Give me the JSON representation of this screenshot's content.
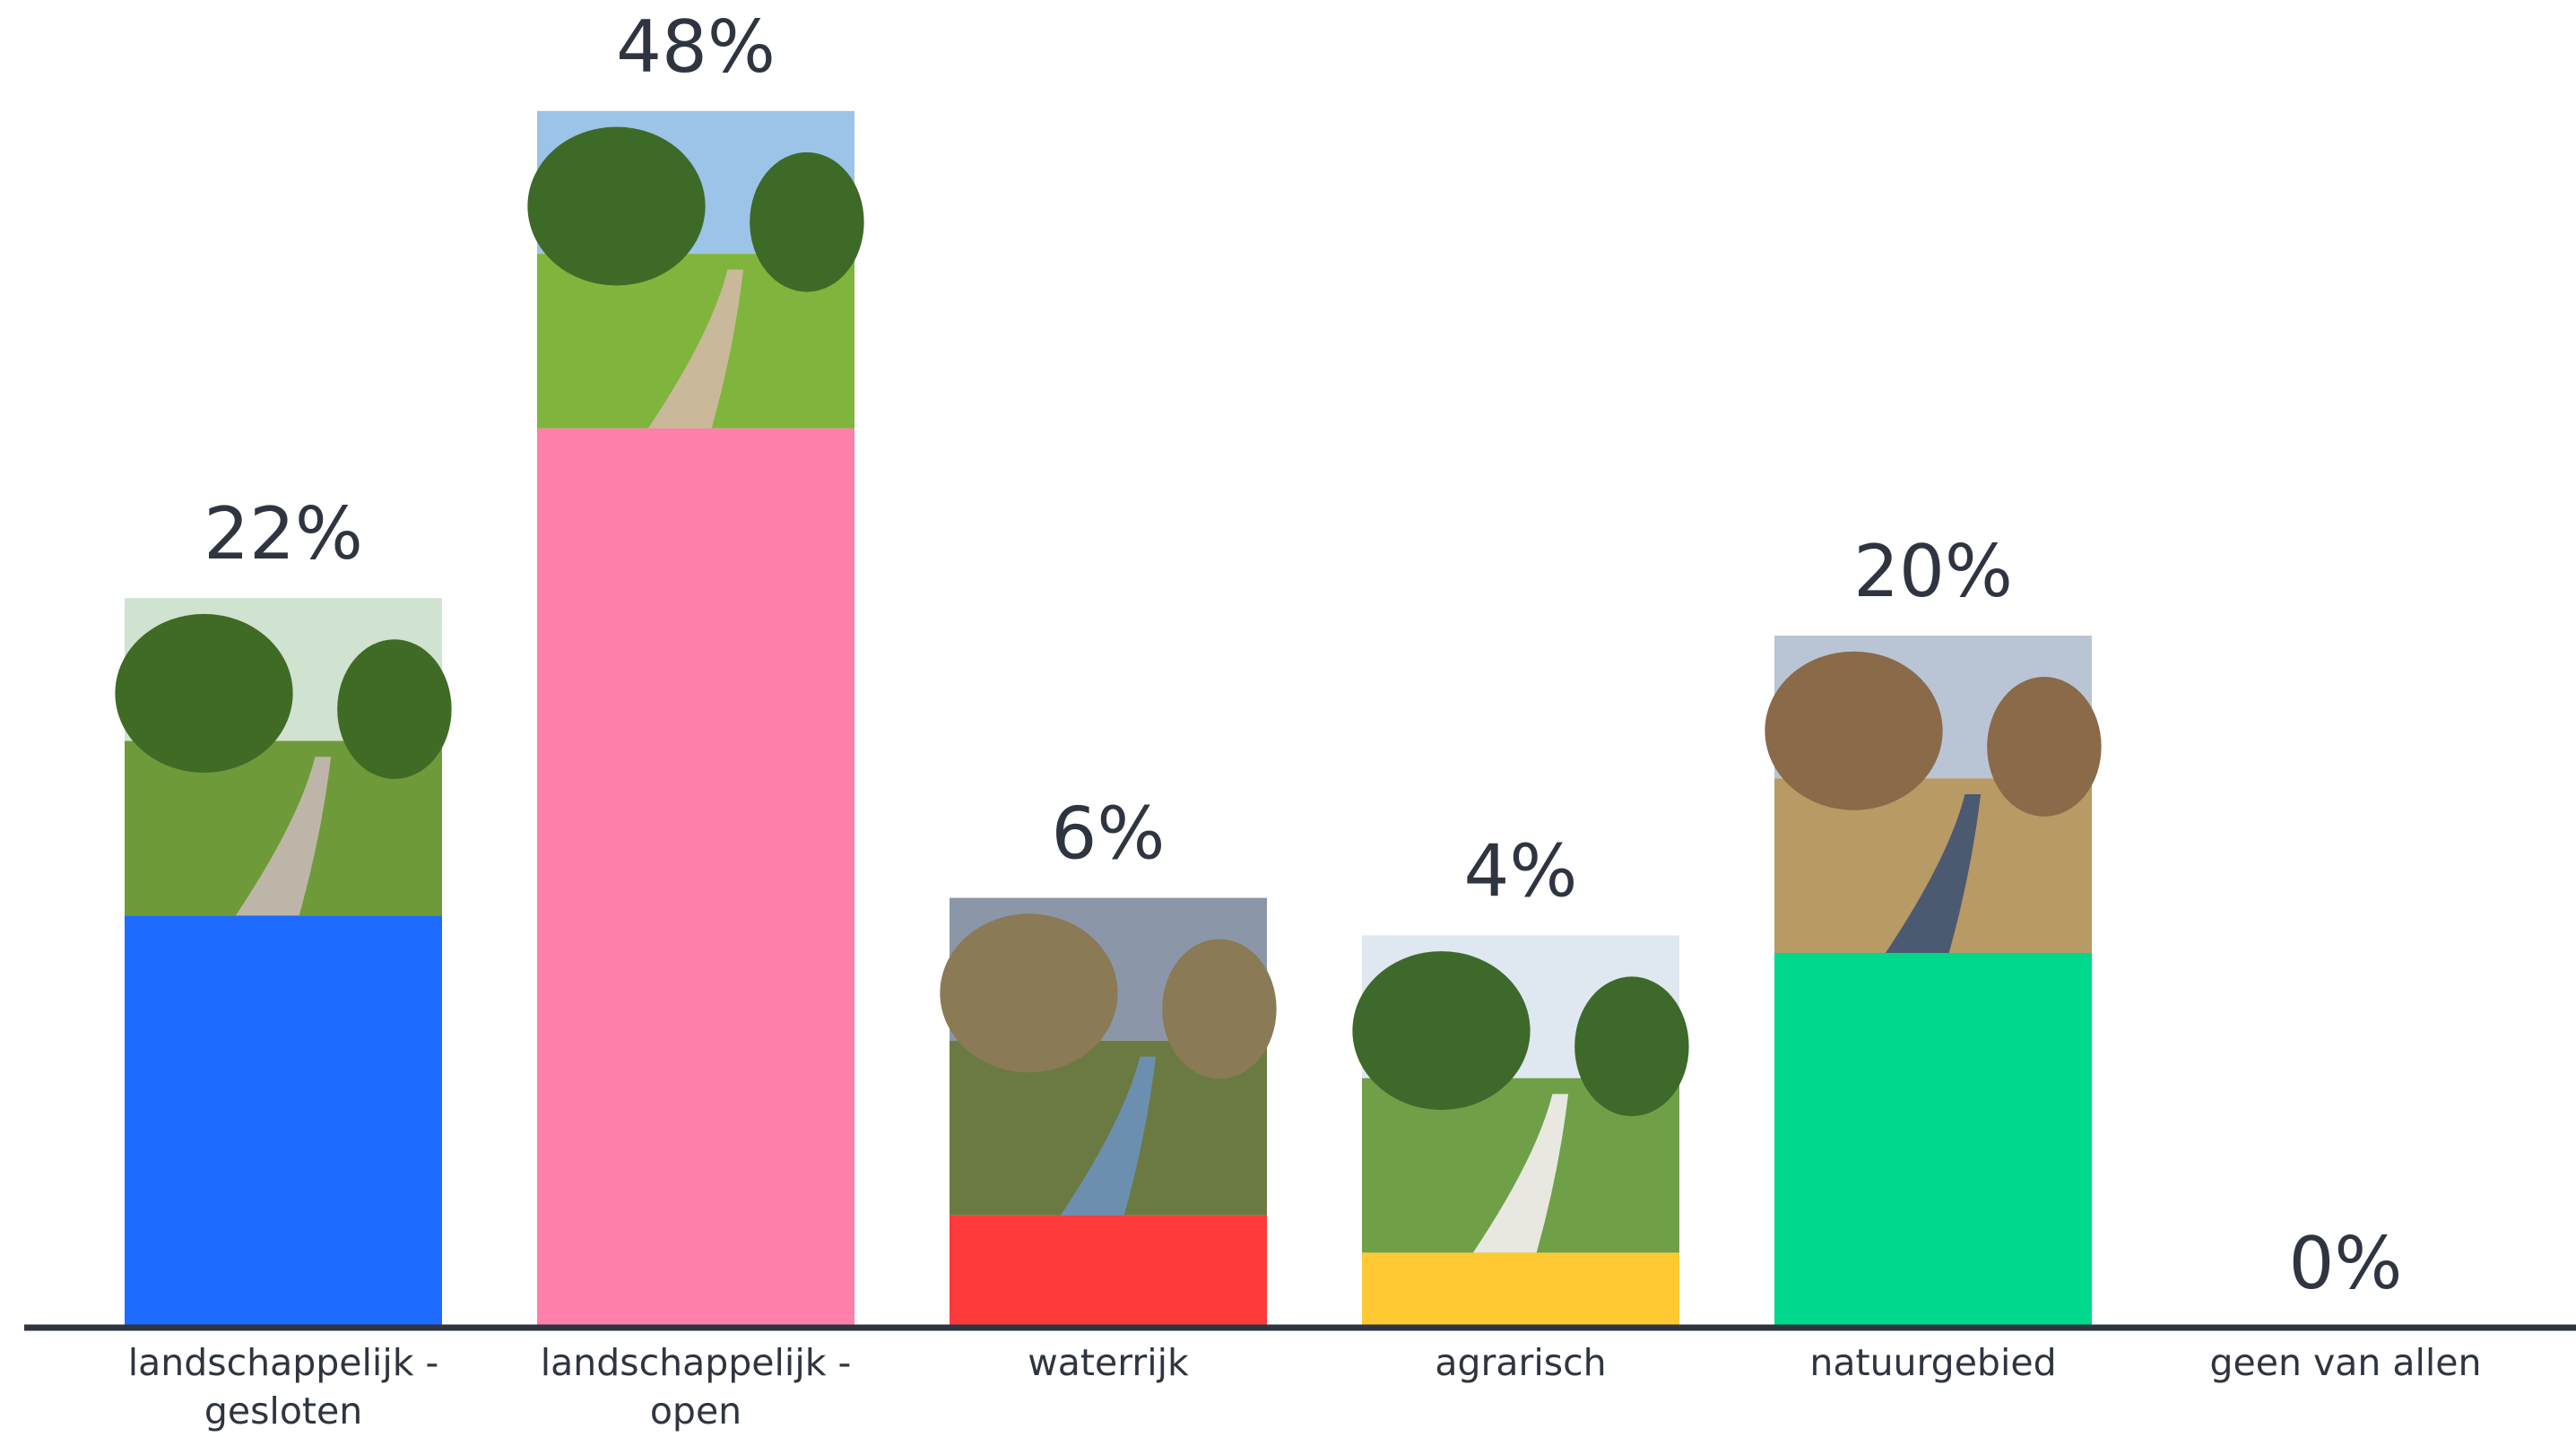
{
  "chart_data": {
    "type": "bar",
    "categories": [
      "landschappelijk - gesloten",
      "landschappelijk - open",
      "waterrijk",
      "agrarisch",
      "natuurgebied",
      "geen van allen"
    ],
    "values": [
      22,
      48,
      6,
      4,
      20,
      0
    ],
    "value_labels": [
      "22%",
      "48%",
      "6%",
      "4%",
      "20%",
      "0%"
    ],
    "colors": [
      "#1e6bff",
      "#ff80aa",
      "#ff3a3a",
      "#ffc933",
      "#00d98b",
      "#cccccc"
    ]
  }
}
